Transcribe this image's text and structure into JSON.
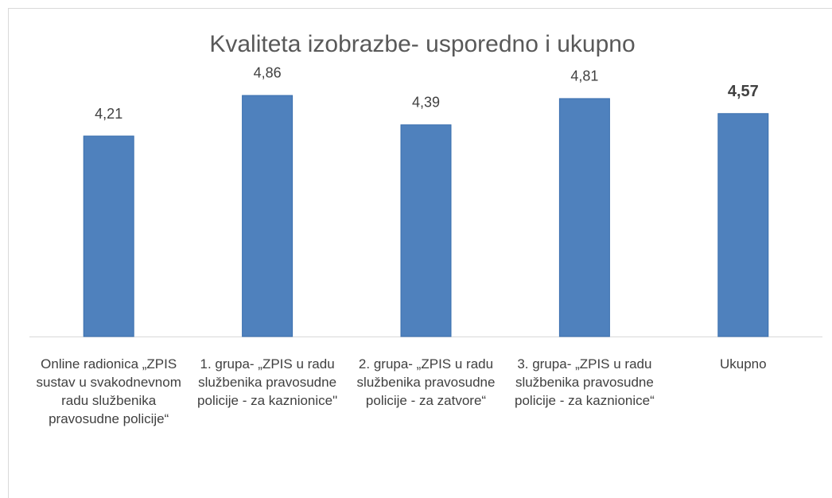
{
  "chart_data": {
    "type": "bar",
    "title": "Kvaliteta izobrazbe- usporedno i ukupno",
    "categories": [
      "Online radionica „ZPIS sustav u svakodnevnom radu službenika pravosudne policije“",
      "1. grupa- „ZPIS u radu službenika pravosudne policije - za kaznionice\"",
      "2. grupa- „ZPIS u radu službenika pravosudne policije - za zatvore“",
      "3. grupa- „ZPIS u radu službenika pravosudne policije - za kaznionice“",
      "Ukupno"
    ],
    "values": [
      4.21,
      4.86,
      4.39,
      4.81,
      4.57
    ],
    "value_labels": [
      "4,21",
      "4,86",
      "4,39",
      "4,81",
      "4,57"
    ],
    "bold_label_index": 4,
    "color": "#4f81bd",
    "ylim": [
      1,
      5
    ]
  }
}
